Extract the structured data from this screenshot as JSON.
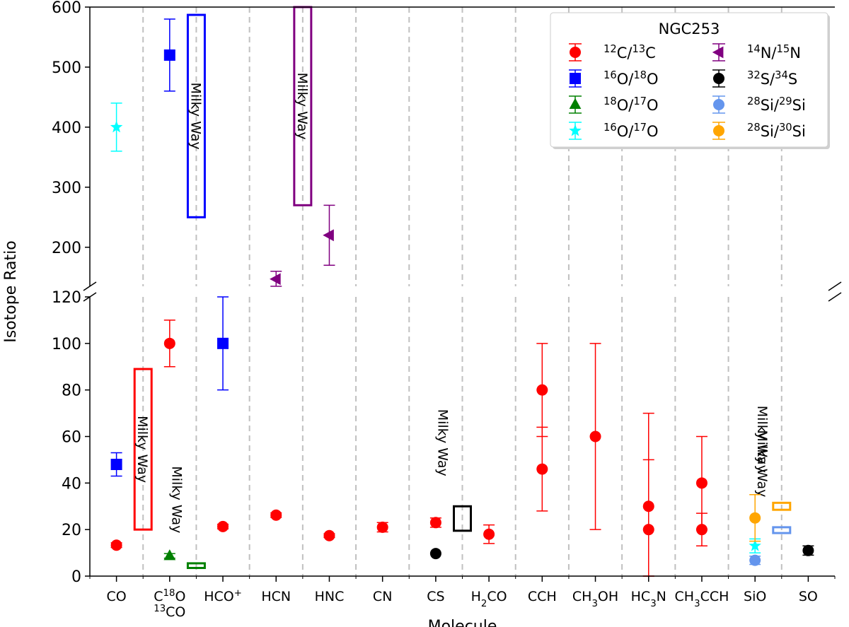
{
  "chart_data": {
    "type": "scatter",
    "title": "",
    "xlabel": "Molecule",
    "ylabel": "Isotope Ratio",
    "categories": [
      {
        "id": "CO",
        "parts": [
          {
            "t": "CO"
          }
        ]
      },
      {
        "id": "C18O_13CO",
        "parts": [
          {
            "t": "C"
          },
          {
            "t": "18",
            "sup": true
          },
          {
            "t": "O"
          }
        ],
        "parts2": [
          {
            "t": "13",
            "sup": true
          },
          {
            "t": "CO"
          }
        ]
      },
      {
        "id": "HCO+",
        "parts": [
          {
            "t": "HCO"
          },
          {
            "t": "+",
            "sup": true
          }
        ]
      },
      {
        "id": "HCN",
        "parts": [
          {
            "t": "HCN"
          }
        ]
      },
      {
        "id": "HNC",
        "parts": [
          {
            "t": "HNC"
          }
        ]
      },
      {
        "id": "CN",
        "parts": [
          {
            "t": "CN"
          }
        ]
      },
      {
        "id": "CS",
        "parts": [
          {
            "t": "CS"
          }
        ]
      },
      {
        "id": "H2CO",
        "parts": [
          {
            "t": "H"
          },
          {
            "t": "2",
            "sub": true
          },
          {
            "t": "CO"
          }
        ]
      },
      {
        "id": "CCH",
        "parts": [
          {
            "t": "CCH"
          }
        ]
      },
      {
        "id": "CH3OH",
        "parts": [
          {
            "t": "CH"
          },
          {
            "t": "3",
            "sub": true
          },
          {
            "t": "OH"
          }
        ]
      },
      {
        "id": "HC3N",
        "parts": [
          {
            "t": "HC"
          },
          {
            "t": "3",
            "sub": true
          },
          {
            "t": "N"
          }
        ]
      },
      {
        "id": "CH3CCH",
        "parts": [
          {
            "t": "CH"
          },
          {
            "t": "3",
            "sub": true
          },
          {
            "t": "CCH"
          }
        ]
      },
      {
        "id": "SiO",
        "parts": [
          {
            "t": "SiO"
          }
        ]
      },
      {
        "id": "SO",
        "parts": [
          {
            "t": "SO"
          }
        ]
      }
    ],
    "axes": {
      "upper": {
        "ylim": [
          135,
          600
        ],
        "ticks": [
          200,
          300,
          400,
          500,
          600
        ]
      },
      "lower": {
        "ylim": [
          0,
          120
        ],
        "ticks": [
          0,
          20,
          40,
          60,
          80,
          100,
          120
        ]
      }
    },
    "grid": "vertical dashed separators between molecules",
    "legend": {
      "title": "NGC253",
      "placement": "top-right",
      "entries": [
        {
          "key": "C12C13",
          "parts": [
            {
              "t": "12",
              "sup": true
            },
            {
              "t": "C/"
            },
            {
              "t": "13",
              "sup": true
            },
            {
              "t": "C"
            }
          ],
          "color": "#ff0000",
          "marker": "circle"
        },
        {
          "key": "O16O18",
          "parts": [
            {
              "t": "16",
              "sup": true
            },
            {
              "t": "O/"
            },
            {
              "t": "18",
              "sup": true
            },
            {
              "t": "O"
            }
          ],
          "color": "#0000ff",
          "marker": "square"
        },
        {
          "key": "O18O17",
          "parts": [
            {
              "t": "18",
              "sup": true
            },
            {
              "t": "O/"
            },
            {
              "t": "17",
              "sup": true
            },
            {
              "t": "O"
            }
          ],
          "color": "#008000",
          "marker": "triangle-up"
        },
        {
          "key": "O16O17",
          "parts": [
            {
              "t": "16",
              "sup": true
            },
            {
              "t": "O/"
            },
            {
              "t": "17",
              "sup": true
            },
            {
              "t": "O"
            }
          ],
          "color": "#00ffff",
          "marker": "star"
        },
        {
          "key": "N14N15",
          "parts": [
            {
              "t": "14",
              "sup": true
            },
            {
              "t": "N/"
            },
            {
              "t": "15",
              "sup": true
            },
            {
              "t": "N"
            }
          ],
          "color": "#800080",
          "marker": "triangle-left"
        },
        {
          "key": "S32S34",
          "parts": [
            {
              "t": "32",
              "sup": true
            },
            {
              "t": "S/"
            },
            {
              "t": "34",
              "sup": true
            },
            {
              "t": "S"
            }
          ],
          "color": "#000000",
          "marker": "circle"
        },
        {
          "key": "Si28Si29",
          "parts": [
            {
              "t": "28",
              "sup": true
            },
            {
              "t": "Si/"
            },
            {
              "t": "29",
              "sup": true
            },
            {
              "t": "Si"
            }
          ],
          "color": "#6495ed",
          "marker": "circle"
        },
        {
          "key": "Si28Si30",
          "parts": [
            {
              "t": "28",
              "sup": true
            },
            {
              "t": "Si/"
            },
            {
              "t": "30",
              "sup": true
            },
            {
              "t": "Si"
            }
          ],
          "color": "#ffa500",
          "marker": "circle"
        }
      ]
    },
    "series": [
      {
        "key": "C12C13",
        "points": [
          {
            "cat": "CO",
            "y": 13.3,
            "lo": 12.3,
            "hi": 14.3
          },
          {
            "cat": "C18O_13CO",
            "y": 100,
            "lo": 90,
            "hi": 110
          },
          {
            "cat": "HCO+",
            "y": 21.3,
            "lo": 20.3,
            "hi": 22.3
          },
          {
            "cat": "HCN",
            "y": 26.2,
            "lo": 25.2,
            "hi": 27.2
          },
          {
            "cat": "HNC",
            "y": 17.4,
            "lo": 16.6,
            "hi": 18.2
          },
          {
            "cat": "CN",
            "y": 21,
            "lo": 19,
            "hi": 23
          },
          {
            "cat": "CS",
            "y": 23,
            "lo": 21,
            "hi": 25
          },
          {
            "cat": "H2CO",
            "y": 18,
            "lo": 14,
            "hi": 22
          },
          {
            "cat": "CCH",
            "y": 80,
            "lo": 60,
            "hi": 100
          },
          {
            "cat": "CCH",
            "y": 46,
            "lo": 28,
            "hi": 64
          },
          {
            "cat": "CH3OH",
            "y": 60,
            "lo": 20,
            "hi": 100
          },
          {
            "cat": "HC3N",
            "y": 30,
            "lo": 0,
            "hi": 50
          },
          {
            "cat": "HC3N",
            "y": 20,
            "lo": 0,
            "hi": 70
          },
          {
            "cat": "CH3CCH",
            "y": 40,
            "lo": 20,
            "hi": 60
          },
          {
            "cat": "CH3CCH",
            "y": 20,
            "lo": 13,
            "hi": 27
          }
        ]
      },
      {
        "key": "O16O18",
        "points": [
          {
            "cat": "CO",
            "y": 48,
            "lo": 43,
            "hi": 53
          },
          {
            "cat": "C18O_13CO",
            "y": 520,
            "lo": 460,
            "hi": 580
          },
          {
            "cat": "HCO+",
            "y": 100,
            "lo": 80,
            "hi": 120
          }
        ]
      },
      {
        "key": "O18O17",
        "points": [
          {
            "cat": "C18O_13CO",
            "y": 8.7,
            "lo": 7.7,
            "hi": 9.7
          }
        ]
      },
      {
        "key": "O16O17",
        "points": [
          {
            "cat": "CO",
            "y": 400,
            "lo": 360,
            "hi": 440
          },
          {
            "cat": "SiO",
            "y": 13,
            "lo": 10,
            "hi": 16
          }
        ]
      },
      {
        "key": "N14N15",
        "points": [
          {
            "cat": "HCN",
            "y": 147,
            "lo": 135,
            "hi": 160
          },
          {
            "cat": "HNC",
            "y": 220,
            "lo": 170,
            "hi": 270
          }
        ]
      },
      {
        "key": "S32S34",
        "points": [
          {
            "cat": "CS",
            "y": 9.7,
            "lo": 9.7,
            "hi": 9.7
          },
          {
            "cat": "SO",
            "y": 11,
            "lo": 9,
            "hi": 13
          }
        ]
      },
      {
        "key": "Si28Si29",
        "points": [
          {
            "cat": "SiO",
            "y": 6.8,
            "lo": 5,
            "hi": 8.6
          }
        ]
      },
      {
        "key": "Si28Si30",
        "points": [
          {
            "cat": "SiO",
            "y": 25,
            "lo": 15,
            "hi": 35
          }
        ]
      }
    ],
    "milky_way_ranges": [
      {
        "label": "Milky Way",
        "panel": "lower",
        "pos": 0.5,
        "y0": 20,
        "y1": 89,
        "color": "#ff0000"
      },
      {
        "label": "Milky Way",
        "panel": "upper",
        "pos": 1.5,
        "y0": 250,
        "y1": 587,
        "color": "#0000ff"
      },
      {
        "label": "Milky Way",
        "panel": "lower",
        "pos": 1.5,
        "y0": 3.5,
        "y1": 5.5,
        "color": "#008000"
      },
      {
        "label": "Milky Way",
        "panel": "upper",
        "pos": 3.5,
        "y0": 270,
        "y1": 600,
        "color": "#800080"
      },
      {
        "label": "Milky Way",
        "panel": "lower",
        "pos": 6.5,
        "y0": 19.5,
        "y1": 30,
        "color": "#000000"
      },
      {
        "label": "Milky Way",
        "panel": "lower",
        "pos": 12.5,
        "y0": 28.5,
        "y1": 31.5,
        "color": "#ffa500"
      },
      {
        "label": "Milky Way",
        "panel": "lower",
        "pos": 12.5,
        "y0": 18.5,
        "y1": 21,
        "color": "#6495ed"
      }
    ]
  }
}
